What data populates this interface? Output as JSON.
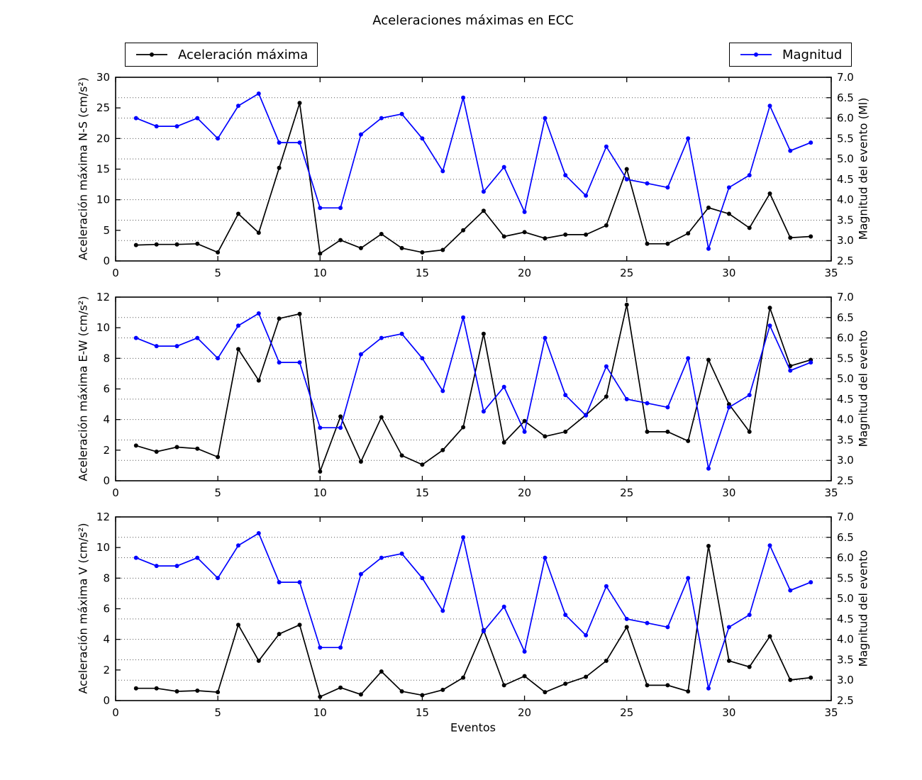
{
  "figure": {
    "title": "Aceleraciones máximas en ECC",
    "xlabel": "Eventos",
    "legends": [
      {
        "label": "Aceleración máxima",
        "color": "#000000"
      },
      {
        "label": "Magnitud",
        "color": "#0000ff"
      }
    ],
    "colors": {
      "accel": "#000000",
      "magnitud": "#0000ff",
      "grid": "#555555",
      "axis": "#000000",
      "background": "#ffffff"
    }
  },
  "chart_data": [
    {
      "type": "line",
      "title": "",
      "ylabel_left": "Aceleración máxima N-S (cm/s²)",
      "ylabel_right": "Magnitud del evento (Ml)",
      "xlim": [
        0,
        35
      ],
      "ylim_left": [
        0,
        30
      ],
      "ylim_right": [
        2.5,
        7.0
      ],
      "xticks": [
        0,
        5,
        10,
        15,
        20,
        25,
        30,
        35
      ],
      "yticks_left": [
        0,
        5,
        10,
        15,
        20,
        25,
        30
      ],
      "yticks_right": [
        2.5,
        3.0,
        3.5,
        4.0,
        4.5,
        5.0,
        5.5,
        6.0,
        6.5,
        7.0
      ],
      "grid": "horizontal dotted at right-axis ticks",
      "x": [
        1,
        2,
        3,
        4,
        5,
        6,
        7,
        8,
        9,
        10,
        11,
        12,
        13,
        14,
        15,
        16,
        17,
        18,
        19,
        20,
        21,
        22,
        23,
        24,
        25,
        26,
        27,
        28,
        29,
        30,
        31,
        32,
        33,
        34
      ],
      "series": [
        {
          "name": "Aceleración máxima",
          "yaxis": "left",
          "color": "#000000",
          "values": [
            2.6,
            2.7,
            2.7,
            2.8,
            1.4,
            7.7,
            4.6,
            15.2,
            25.8,
            1.2,
            3.4,
            2.1,
            4.4,
            2.1,
            1.4,
            1.8,
            5.0,
            8.2,
            4.0,
            4.7,
            3.7,
            4.3,
            4.3,
            5.8,
            15.0,
            2.8,
            2.8,
            4.5,
            8.7,
            7.7,
            5.4,
            11.0,
            3.8,
            4.0
          ]
        },
        {
          "name": "Magnitud",
          "yaxis": "right",
          "color": "#0000ff",
          "values": [
            6.0,
            5.8,
            5.8,
            6.0,
            5.5,
            6.3,
            6.6,
            5.4,
            5.4,
            3.8,
            3.8,
            5.6,
            6.0,
            6.1,
            5.5,
            4.7,
            6.5,
            4.2,
            4.8,
            3.7,
            6.0,
            4.6,
            4.1,
            5.3,
            4.5,
            4.4,
            4.3,
            5.5,
            2.8,
            4.3,
            4.6,
            6.3,
            5.2,
            5.4
          ]
        }
      ]
    },
    {
      "type": "line",
      "title": "",
      "ylabel_left": "Aceleración máxima E-W (cm/s²)",
      "ylabel_right": "Magnitud del evento",
      "xlim": [
        0,
        35
      ],
      "ylim_left": [
        0,
        12
      ],
      "ylim_right": [
        2.5,
        7.0
      ],
      "xticks": [
        0,
        5,
        10,
        15,
        20,
        25,
        30,
        35
      ],
      "yticks_left": [
        0,
        2,
        4,
        6,
        8,
        10,
        12
      ],
      "yticks_right": [
        2.5,
        3.0,
        3.5,
        4.0,
        4.5,
        5.0,
        5.5,
        6.0,
        6.5,
        7.0
      ],
      "grid": "horizontal dotted at right-axis ticks",
      "x": [
        1,
        2,
        3,
        4,
        5,
        6,
        7,
        8,
        9,
        10,
        11,
        12,
        13,
        14,
        15,
        16,
        17,
        18,
        19,
        20,
        21,
        22,
        23,
        24,
        25,
        26,
        27,
        28,
        29,
        30,
        31,
        32,
        33,
        34
      ],
      "series": [
        {
          "name": "Aceleración máxima",
          "yaxis": "left",
          "color": "#000000",
          "values": [
            2.3,
            1.9,
            2.2,
            2.1,
            1.55,
            8.6,
            6.55,
            10.6,
            10.9,
            0.6,
            4.2,
            1.25,
            4.15,
            1.65,
            1.05,
            2.0,
            3.5,
            9.6,
            2.5,
            3.9,
            2.9,
            3.2,
            4.3,
            5.5,
            11.5,
            3.2,
            3.2,
            2.6,
            7.9,
            5.0,
            3.2,
            11.3,
            7.5,
            7.9
          ]
        },
        {
          "name": "Magnitud",
          "yaxis": "right",
          "color": "#0000ff",
          "values": [
            6.0,
            5.8,
            5.8,
            6.0,
            5.5,
            6.3,
            6.6,
            5.4,
            5.4,
            3.8,
            3.8,
            5.6,
            6.0,
            6.1,
            5.5,
            4.7,
            6.5,
            4.2,
            4.8,
            3.7,
            6.0,
            4.6,
            4.1,
            5.3,
            4.5,
            4.4,
            4.3,
            5.5,
            2.8,
            4.3,
            4.6,
            6.3,
            5.2,
            5.4
          ]
        }
      ]
    },
    {
      "type": "line",
      "title": "",
      "xlabel": "Eventos",
      "ylabel_left": "Aceleración máxima V (cm/s²)",
      "ylabel_right": "Magnitud del evento",
      "xlim": [
        0,
        35
      ],
      "ylim_left": [
        0,
        12
      ],
      "ylim_right": [
        2.5,
        7.0
      ],
      "xticks": [
        0,
        5,
        10,
        15,
        20,
        25,
        30,
        35
      ],
      "yticks_left": [
        0,
        2,
        4,
        6,
        8,
        10,
        12
      ],
      "yticks_right": [
        2.5,
        3.0,
        3.5,
        4.0,
        4.5,
        5.0,
        5.5,
        6.0,
        6.5,
        7.0
      ],
      "grid": "horizontal dotted at right-axis ticks",
      "x": [
        1,
        2,
        3,
        4,
        5,
        6,
        7,
        8,
        9,
        10,
        11,
        12,
        13,
        14,
        15,
        16,
        17,
        18,
        19,
        20,
        21,
        22,
        23,
        24,
        25,
        26,
        27,
        28,
        29,
        30,
        31,
        32,
        33,
        34
      ],
      "series": [
        {
          "name": "Aceleración máxima",
          "yaxis": "left",
          "color": "#000000",
          "values": [
            0.8,
            0.8,
            0.6,
            0.65,
            0.55,
            4.95,
            2.6,
            4.35,
            4.95,
            0.25,
            0.85,
            0.4,
            1.9,
            0.6,
            0.35,
            0.7,
            1.5,
            4.6,
            1.0,
            1.6,
            0.55,
            1.1,
            1.55,
            2.6,
            4.8,
            1.0,
            1.0,
            0.6,
            10.1,
            2.6,
            2.2,
            4.2,
            1.35,
            1.5
          ]
        },
        {
          "name": "Magnitud",
          "yaxis": "right",
          "color": "#0000ff",
          "values": [
            6.0,
            5.8,
            5.8,
            6.0,
            5.5,
            6.3,
            6.6,
            5.4,
            5.4,
            3.8,
            3.8,
            5.6,
            6.0,
            6.1,
            5.5,
            4.7,
            6.5,
            4.2,
            4.8,
            3.7,
            6.0,
            4.6,
            4.1,
            5.3,
            4.5,
            4.4,
            4.3,
            5.5,
            2.8,
            4.3,
            4.6,
            6.3,
            5.2,
            5.4
          ]
        }
      ]
    }
  ]
}
